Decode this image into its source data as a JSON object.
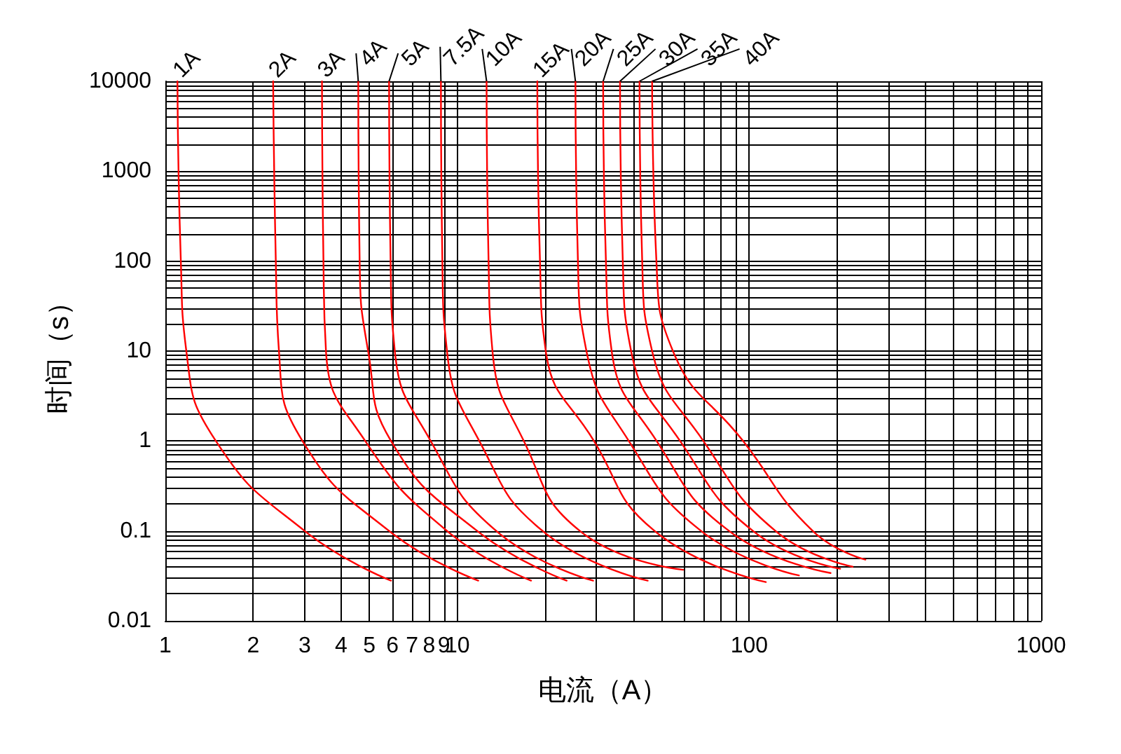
{
  "chart_data": {
    "type": "line",
    "xlabel": "电流（A）",
    "ylabel": "时间（s）",
    "log": "xy",
    "grid": true,
    "legend": false,
    "marker": "none",
    "line_style": "solid",
    "xlim": [
      1,
      1000
    ],
    "ylim": [
      0.01,
      10000
    ],
    "xticks": [
      1,
      2,
      3,
      4,
      5,
      6,
      7,
      8,
      9,
      10,
      {
        "value": 20,
        "label": null
      },
      {
        "value": 30,
        "label": null
      },
      {
        "value": 40,
        "label": null
      },
      {
        "value": 50,
        "label": null
      },
      {
        "value": 60,
        "label": null
      },
      {
        "value": 70,
        "label": null
      },
      {
        "value": 80,
        "label": null
      },
      {
        "value": 90,
        "label": null
      },
      100,
      {
        "value": 200,
        "label": null
      },
      {
        "value": 300,
        "label": null
      },
      {
        "value": 400,
        "label": null
      },
      {
        "value": 500,
        "label": null
      },
      {
        "value": 600,
        "label": null
      },
      {
        "value": 700,
        "label": null
      },
      {
        "value": 800,
        "label": null
      },
      {
        "value": 900,
        "label": null
      },
      1000
    ],
    "yticks": [
      0.01,
      {
        "value": 0.02,
        "label": null
      },
      {
        "value": 0.03,
        "label": null
      },
      {
        "value": 0.04,
        "label": null
      },
      {
        "value": 0.05,
        "label": null
      },
      {
        "value": 0.06,
        "label": null
      },
      {
        "value": 0.07,
        "label": null
      },
      {
        "value": 0.08,
        "label": null
      },
      {
        "value": 0.09,
        "label": null
      },
      0.1,
      {
        "value": 0.2,
        "label": null
      },
      {
        "value": 0.3,
        "label": null
      },
      {
        "value": 0.4,
        "label": null
      },
      {
        "value": 0.5,
        "label": null
      },
      {
        "value": 0.6,
        "label": null
      },
      {
        "value": 0.7,
        "label": null
      },
      {
        "value": 0.8,
        "label": null
      },
      {
        "value": 0.9,
        "label": null
      },
      1,
      {
        "value": 2,
        "label": null
      },
      {
        "value": 3,
        "label": null
      },
      {
        "value": 4,
        "label": null
      },
      {
        "value": 5,
        "label": null
      },
      {
        "value": 6,
        "label": null
      },
      {
        "value": 7,
        "label": null
      },
      {
        "value": 8,
        "label": null
      },
      {
        "value": 9,
        "label": null
      },
      10,
      {
        "value": 20,
        "label": null
      },
      {
        "value": 30,
        "label": null
      },
      {
        "value": 40,
        "label": null
      },
      {
        "value": 50,
        "label": null
      },
      {
        "value": 60,
        "label": null
      },
      {
        "value": 70,
        "label": null
      },
      {
        "value": 80,
        "label": null
      },
      {
        "value": 90,
        "label": null
      },
      100,
      {
        "value": 200,
        "label": null
      },
      {
        "value": 300,
        "label": null
      },
      {
        "value": 400,
        "label": null
      },
      {
        "value": 500,
        "label": null
      },
      {
        "value": 600,
        "label": null
      },
      {
        "value": 700,
        "label": null
      },
      {
        "value": 800,
        "label": null
      },
      {
        "value": 900,
        "label": null
      },
      1000,
      {
        "value": 2000,
        "label": null
      },
      {
        "value": 3000,
        "label": null
      },
      {
        "value": 4000,
        "label": null
      },
      {
        "value": 5000,
        "label": null
      },
      {
        "value": 6000,
        "label": null
      },
      {
        "value": 7000,
        "label": null
      },
      {
        "value": 8000,
        "label": null
      },
      {
        "value": 9000,
        "label": null
      },
      10000
    ],
    "series": [
      {
        "name": "1A",
        "color": "#ff0000",
        "x": [
          1.1,
          1.13,
          1.18,
          1.49,
          3.0,
          5.93
        ],
        "values": [
          10000,
          100,
          10,
          1,
          0.1,
          0.028
        ]
      },
      {
        "name": "2A",
        "color": "#ff0000",
        "x": [
          2.34,
          2.39,
          2.45,
          2.95,
          5.84,
          11.8
        ],
        "values": [
          10000,
          100,
          10,
          1,
          0.1,
          0.028
        ]
      },
      {
        "name": "3A",
        "color": "#ff0000",
        "x": [
          3.44,
          3.48,
          3.55,
          4.84,
          9.22,
          17.9
        ],
        "values": [
          10000,
          100,
          10,
          1,
          0.1,
          0.028
        ]
      },
      {
        "name": "4A",
        "color": "#ff0000",
        "x": [
          4.58,
          4.63,
          4.95,
          5.93,
          11.7,
          23.7
        ],
        "values": [
          10000,
          100,
          10,
          1,
          0.1,
          0.028
        ]
      },
      {
        "name": "5A",
        "color": "#ff0000",
        "x": [
          5.84,
          5.91,
          6.11,
          8.11,
          13.6,
          29.2
        ],
        "values": [
          10000,
          100,
          10,
          1,
          0.1,
          0.028
        ]
      },
      {
        "name": "7.5A",
        "color": "#ff0000",
        "x": [
          8.79,
          8.89,
          9.22,
          11.9,
          19.6,
          44.9
        ],
        "values": [
          10000,
          100,
          10,
          1,
          0.1,
          0.028
        ]
      },
      {
        "name": "10A",
        "color": "#ff0000",
        "x": [
          12.6,
          12.8,
          13.2,
          16.9,
          26.3,
          59.4
        ],
        "values": [
          10000,
          100,
          10,
          1,
          0.1,
          0.037
        ]
      },
      {
        "name": "15A",
        "color": "#ff0000",
        "x": [
          18.8,
          19.2,
          20.1,
          29.4,
          47.4,
          114
        ],
        "values": [
          10000,
          100,
          10,
          1,
          0.1,
          0.027
        ]
      },
      {
        "name": "20A",
        "color": "#ff0000",
        "x": [
          25.4,
          25.9,
          27.7,
          38.7,
          68.4,
          148
        ],
        "values": [
          10000,
          100,
          10,
          1,
          0.1,
          0.032
        ]
      },
      {
        "name": "25A",
        "color": "#ff0000",
        "x": [
          31.6,
          32.3,
          33.8,
          48.2,
          85.3,
          190
        ],
        "values": [
          10000,
          100,
          10,
          1,
          0.1,
          0.034
        ]
      },
      {
        "name": "30A",
        "color": "#ff0000",
        "x": [
          36.1,
          36.9,
          39.4,
          58.0,
          103,
          205
        ],
        "values": [
          10000,
          100,
          10,
          1,
          0.1,
          0.038
        ]
      },
      {
        "name": "35A",
        "color": "#ff0000",
        "x": [
          42.1,
          43.0,
          46.5,
          69.7,
          123,
          226
        ],
        "values": [
          10000,
          100,
          10,
          1,
          0.1,
          0.04
        ]
      },
      {
        "name": "40A",
        "color": "#ff0000",
        "x": [
          46.5,
          48.1,
          54.8,
          95.3,
          165,
          250
        ],
        "values": [
          10000,
          100,
          10,
          1,
          0.1,
          0.048
        ]
      }
    ]
  }
}
